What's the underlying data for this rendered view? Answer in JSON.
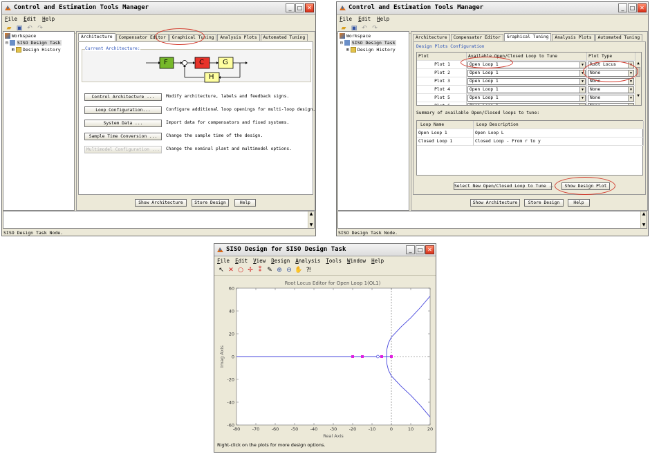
{
  "win1": {
    "title": "Control and Estimation Tools Manager",
    "menu": [
      "File",
      "Edit",
      "Help"
    ],
    "tree": {
      "workspace": "Workspace",
      "task": "SISO Design Task",
      "history": "Design History"
    },
    "tabs": [
      "Architecture",
      "Compensator Editor",
      "Graphical Tuning",
      "Analysis Plots",
      "Automated Tuning"
    ],
    "current_architecture": "Current Architecture:",
    "blocks": {
      "f": "F",
      "c": "C",
      "g": "G",
      "h": "H"
    },
    "actions": [
      {
        "label": "Control Architecture ...",
        "desc": "Modify architecture, labels and feedback signs."
      },
      {
        "label": "Loop Configuration...",
        "desc": "Configure additional loop openings for multi-loop design."
      },
      {
        "label": "System Data ...",
        "desc": "Import data for compensators and fixed systems."
      },
      {
        "label": "Sample Time Conversion ...",
        "desc": "Change the sample time of the design."
      },
      {
        "label": "Multimodel Configuration ...",
        "desc": "Change the nominal plant and multimodel options."
      }
    ],
    "bottom_buttons": {
      "show_arch": "Show Architecture",
      "store": "Store Design",
      "help": "Help"
    },
    "status": "SISO Design Task Node."
  },
  "win2": {
    "title": "Control and Estimation Tools Manager",
    "menu": [
      "File",
      "Edit",
      "Help"
    ],
    "tree": {
      "workspace": "Workspace",
      "task": "SISO Design Task",
      "history": "Design History"
    },
    "tabs": [
      "Architecture",
      "Compensator Editor",
      "Graphical Tuning",
      "Analysis Plots",
      "Automated Tuning"
    ],
    "config_title": "Design Plots Configuration",
    "table_headers": {
      "plot": "Plot",
      "loop": "Available Open/Closed Loop to Tune",
      "type": "Plot Type"
    },
    "rows": [
      {
        "plot": "Plot 1",
        "loop": "Open Loop 1",
        "type": "Root Locus"
      },
      {
        "plot": "Plot 2",
        "loop": "Open Loop 1",
        "type": "None"
      },
      {
        "plot": "Plot 3",
        "loop": "Open Loop 1",
        "type": "None"
      },
      {
        "plot": "Plot 4",
        "loop": "Open Loop 1",
        "type": "None"
      },
      {
        "plot": "Plot 5",
        "loop": "Open Loop 1",
        "type": "None"
      },
      {
        "plot": "Plot 6",
        "loop": "Open Loop 1",
        "type": "None"
      }
    ],
    "summary_title": "Summary of available Open/Closed loops to tune:",
    "summary_headers": {
      "name": "Loop Name",
      "desc": "Loop Description"
    },
    "summary_rows": [
      {
        "name": "Open Loop 1",
        "desc": "Open Loop L"
      },
      {
        "name": "Closed Loop 1",
        "desc": "Closed Loop - From r to y"
      }
    ],
    "select_button": "Select New Open/Closed Loop to Tune ...",
    "show_plot_button": "Show Design Plot",
    "bottom_buttons": {
      "show_arch": "Show Architecture",
      "store": "Store Design",
      "help": "Help"
    },
    "status": "SISO Design Task Node."
  },
  "win3": {
    "title": "SISO Design for SISO Design Task",
    "menu": [
      "File",
      "Edit",
      "View",
      "Design",
      "Analysis",
      "Tools",
      "Window",
      "Help"
    ],
    "plot_title": "Root Locus Editor for Open Loop 1(OL1)",
    "xlabel": "Real Axis",
    "ylabel": "Imag Axis",
    "status": "Right-click on the plots for more design options."
  },
  "chart_data": {
    "type": "scatter",
    "title": "Root Locus Editor for Open Loop 1(OL1)",
    "xlabel": "Real Axis",
    "ylabel": "Imag Axis",
    "xlim": [
      -80,
      20
    ],
    "ylim": [
      -60,
      60
    ],
    "xticks": [
      -80,
      -70,
      -60,
      -50,
      -40,
      -30,
      -20,
      -10,
      0,
      10,
      20
    ],
    "yticks": [
      -60,
      -40,
      -20,
      0,
      20,
      40,
      60
    ],
    "real_axis_locus": [
      [
        -80,
        0
      ],
      [
        0,
        0
      ]
    ],
    "branch_upper": [
      [
        -2.5,
        0
      ],
      [
        -2.4,
        6
      ],
      [
        -1.5,
        12
      ],
      [
        0,
        17
      ],
      [
        5,
        26
      ],
      [
        10,
        34
      ],
      [
        15,
        43
      ],
      [
        20,
        53
      ]
    ],
    "branch_lower": [
      [
        -2.5,
        0
      ],
      [
        -2.4,
        -6
      ],
      [
        -1.5,
        -12
      ],
      [
        0,
        -17
      ],
      [
        5,
        -26
      ],
      [
        10,
        -34
      ],
      [
        15,
        -43
      ],
      [
        20,
        -53
      ]
    ],
    "closed_loop_poles": [
      -20,
      -15,
      -5,
      0
    ],
    "open_loop_zero": -7,
    "colors": {
      "locus": "#4444dd",
      "pole_marker": "#e020e0",
      "grid_dash": "#666666"
    }
  }
}
